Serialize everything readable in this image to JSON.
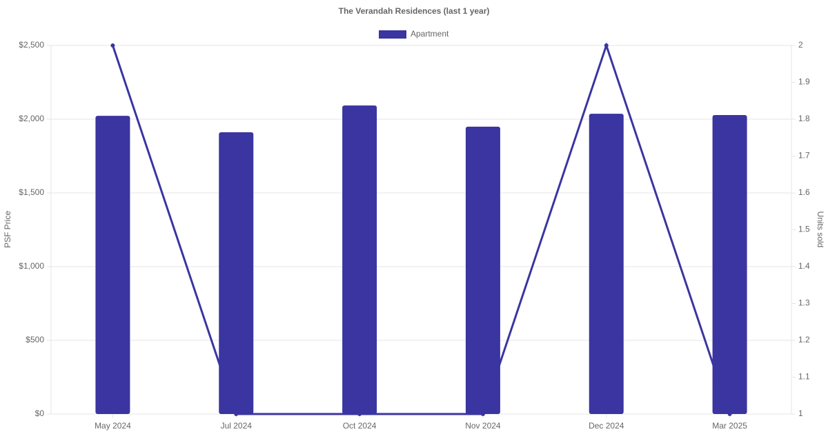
{
  "chart_data": {
    "type": "bar",
    "title": "The Verandah Residences (last 1 year)",
    "categories": [
      "May 2024",
      "Jul 2024",
      "Oct 2024",
      "Nov 2024",
      "Dec 2024",
      "Mar 2025"
    ],
    "series": [
      {
        "name": "Apartment",
        "type": "bar",
        "color": "#3a35a0",
        "values": [
          2023,
          1911,
          2093,
          1949,
          2037,
          2028
        ]
      },
      {
        "type": "line",
        "axis": "y2",
        "color": "#3a35a0",
        "values": [
          2,
          1,
          1,
          1,
          2,
          1
        ]
      }
    ],
    "ylabel": "PSF Price",
    "y2label": "Units sold",
    "ylim": [
      0,
      2500
    ],
    "yticks": [
      {
        "value": 0,
        "label": "$0"
      },
      {
        "value": 500,
        "label": "$500"
      },
      {
        "value": 1000,
        "label": "$1,000"
      },
      {
        "value": 1500,
        "label": "$1,500"
      },
      {
        "value": 2000,
        "label": "$2,000"
      },
      {
        "value": 2500,
        "label": "$2,500"
      }
    ],
    "y2lim": [
      1,
      2
    ],
    "y2ticks": [
      1,
      1.1,
      1.2,
      1.3,
      1.4,
      1.5,
      1.6,
      1.7,
      1.8,
      1.9,
      2
    ],
    "grid": true,
    "legend": "top"
  }
}
